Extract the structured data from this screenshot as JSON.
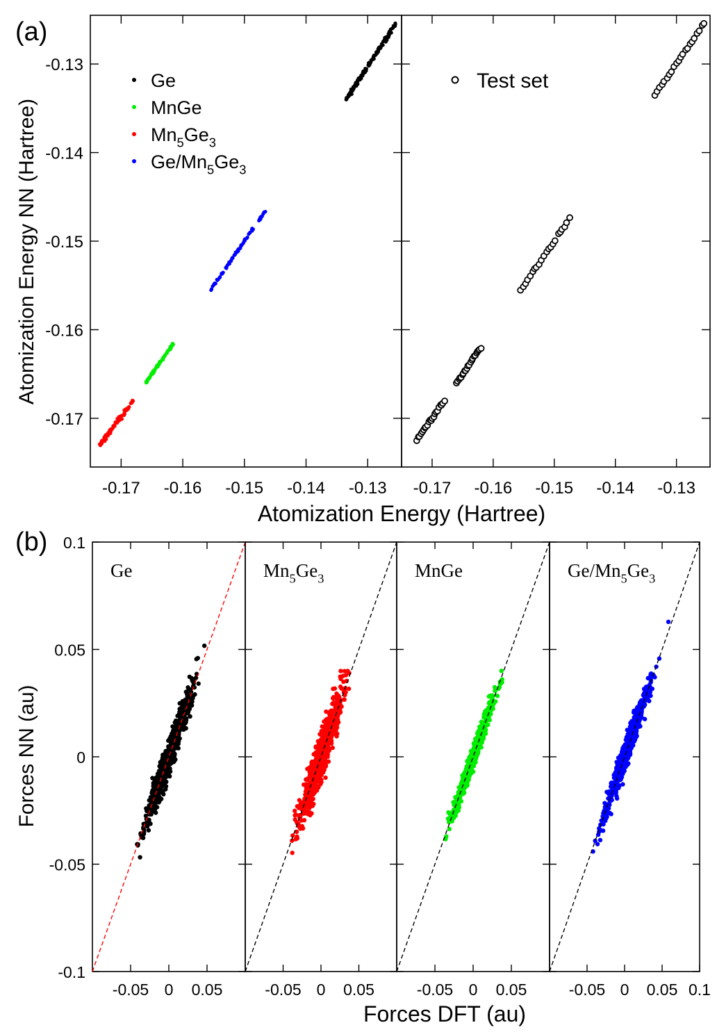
{
  "figure": {
    "panel_labels": [
      "(a)",
      "(b)"
    ]
  },
  "chart_data": [
    {
      "id": "a-left",
      "type": "scatter",
      "xlabel": "Atomization Energy (Hartree)",
      "ylabel": "Atomization Energy NN (Hartree)",
      "xlim": [
        -0.175,
        -0.1245
      ],
      "ylim": [
        -0.1755,
        -0.1245
      ],
      "xticks": [
        -0.17,
        -0.16,
        -0.15,
        -0.14,
        -0.13
      ],
      "xtick_labels": [
        "-0.17",
        "-0.16",
        "-0.15",
        "-0.14",
        "-0.13"
      ],
      "yticks": [
        -0.17,
        -0.16,
        -0.15,
        -0.14,
        -0.13
      ],
      "ytick_labels": [
        "-0.17",
        "-0.16",
        "-0.15",
        "-0.14",
        "-0.13"
      ],
      "legend_position": "top-left",
      "series": [
        {
          "name": "Ge",
          "legend": [
            "Ge"
          ],
          "color": "#000000",
          "marker": "filled-dot",
          "segment": [
            [
              -0.1335,
              -0.134
            ],
            [
              -0.1255,
              -0.1255
            ]
          ],
          "spread": 0.0004
        },
        {
          "name": "MnGe",
          "legend": [
            "MnGe"
          ],
          "color": "#00ee00",
          "marker": "filled-dot",
          "segment": [
            [
              -0.166,
              -0.166
            ],
            [
              -0.1615,
              -0.1615
            ]
          ],
          "spread": 0.0002
        },
        {
          "name": "Mn5Ge3",
          "legend": [
            "Mn",
            "5",
            "Ge",
            "3"
          ],
          "color": "#ff0000",
          "marker": "filled-dot",
          "segment": [
            [
              -0.1735,
              -0.173
            ],
            [
              -0.168,
              -0.168
            ]
          ],
          "spread": 0.0004
        },
        {
          "name": "Ge/Mn5Ge3",
          "legend": [
            "Ge/Mn",
            "5",
            "Ge",
            "3"
          ],
          "color": "#0000ff",
          "marker": "filled-dot",
          "segment": [
            [
              -0.1555,
              -0.1555
            ],
            [
              -0.1465,
              -0.1465
            ]
          ],
          "spread": 0.0002
        }
      ]
    },
    {
      "id": "a-right",
      "type": "scatter",
      "xlim": [
        -0.175,
        -0.1245
      ],
      "ylim": [
        -0.1755,
        -0.1245
      ],
      "xticks": [
        -0.17,
        -0.16,
        -0.15,
        -0.14,
        -0.13
      ],
      "xtick_labels": [
        "-0.17",
        "-0.16",
        "-0.15",
        "-0.14",
        "-0.13"
      ],
      "legend_position": "top-left",
      "series": [
        {
          "name": "Test set",
          "legend": [
            "Test set"
          ],
          "color": "#000000",
          "marker": "open-circle",
          "segments": [
            [
              [
                -0.1335,
                -0.1335
              ],
              [
                -0.1255,
                -0.1255
              ]
            ],
            [
              [
                -0.1555,
                -0.1555
              ],
              [
                -0.1475,
                -0.1475
              ]
            ],
            [
              [
                -0.166,
                -0.166
              ],
              [
                -0.162,
                -0.162
              ]
            ],
            [
              [
                -0.1725,
                -0.1725
              ],
              [
                -0.168,
                -0.168
              ]
            ]
          ]
        }
      ]
    },
    {
      "id": "b1",
      "type": "scatter",
      "inset_label": [
        "Ge"
      ],
      "xlim": [
        -0.1,
        0.1
      ],
      "ylim": [
        -0.1,
        0.1
      ],
      "xticks": [
        -0.05,
        0,
        0.05
      ],
      "xtick_labels": [
        "-0.05",
        "0",
        "0.05"
      ],
      "yticks": [
        -0.1,
        -0.05,
        0,
        0.05,
        0.1
      ],
      "ytick_labels": [
        "-0.1",
        "-0.05",
        "0",
        "0.05",
        "0.1"
      ],
      "ylabel": "Forces NN (au)",
      "series": [
        {
          "name": "Ge",
          "color": "#000000",
          "range": [
            -0.055,
            0.055
          ],
          "spread": 0.012
        }
      ],
      "reference_line": {
        "slope": 1,
        "color": "#ff0000",
        "style": "dashed"
      }
    },
    {
      "id": "b2",
      "type": "scatter",
      "inset_label": [
        "Mn",
        "5",
        "Ge",
        "3"
      ],
      "xlim": [
        -0.1,
        0.1
      ],
      "ylim": [
        -0.1,
        0.1
      ],
      "xticks": [
        -0.05,
        0,
        0.05
      ],
      "xtick_labels": [
        "-0.05",
        "0",
        "0.05"
      ],
      "series": [
        {
          "name": "Mn5Ge3",
          "color": "#ff0000",
          "range": [
            -0.05,
            0.05
          ],
          "spread": 0.016
        }
      ],
      "reference_line": {
        "slope": 1,
        "color": "#000000",
        "style": "dashed"
      }
    },
    {
      "id": "b3",
      "type": "scatter",
      "inset_label": [
        "MnGe"
      ],
      "xlim": [
        -0.1,
        0.1
      ],
      "ylim": [
        -0.1,
        0.1
      ],
      "xticks": [
        -0.05,
        0,
        0.05
      ],
      "xtick_labels": [
        "-0.05",
        "0",
        "0.05"
      ],
      "series": [
        {
          "name": "MnGe",
          "color": "#00ee00",
          "range": [
            -0.045,
            0.045
          ],
          "spread": 0.008
        }
      ],
      "reference_line": {
        "slope": 1,
        "color": "#000000",
        "style": "dashed"
      }
    },
    {
      "id": "b4",
      "type": "scatter",
      "inset_label": [
        "Ge/Mn",
        "5",
        "Ge",
        "3"
      ],
      "xlim": [
        -0.1,
        0.1
      ],
      "ylim": [
        -0.1,
        0.1
      ],
      "xticks": [
        -0.05,
        0,
        0.05,
        0.1
      ],
      "xtick_labels": [
        "-0.05",
        "0",
        "0.05",
        "0.1"
      ],
      "xlabel": "Forces DFT (au)",
      "series": [
        {
          "name": "Ge/Mn5Ge3",
          "color": "#0000ff",
          "range": [
            -0.05,
            0.055
          ],
          "spread": 0.01
        }
      ],
      "reference_line": {
        "slope": 1,
        "color": "#000000",
        "style": "dashed"
      }
    }
  ]
}
